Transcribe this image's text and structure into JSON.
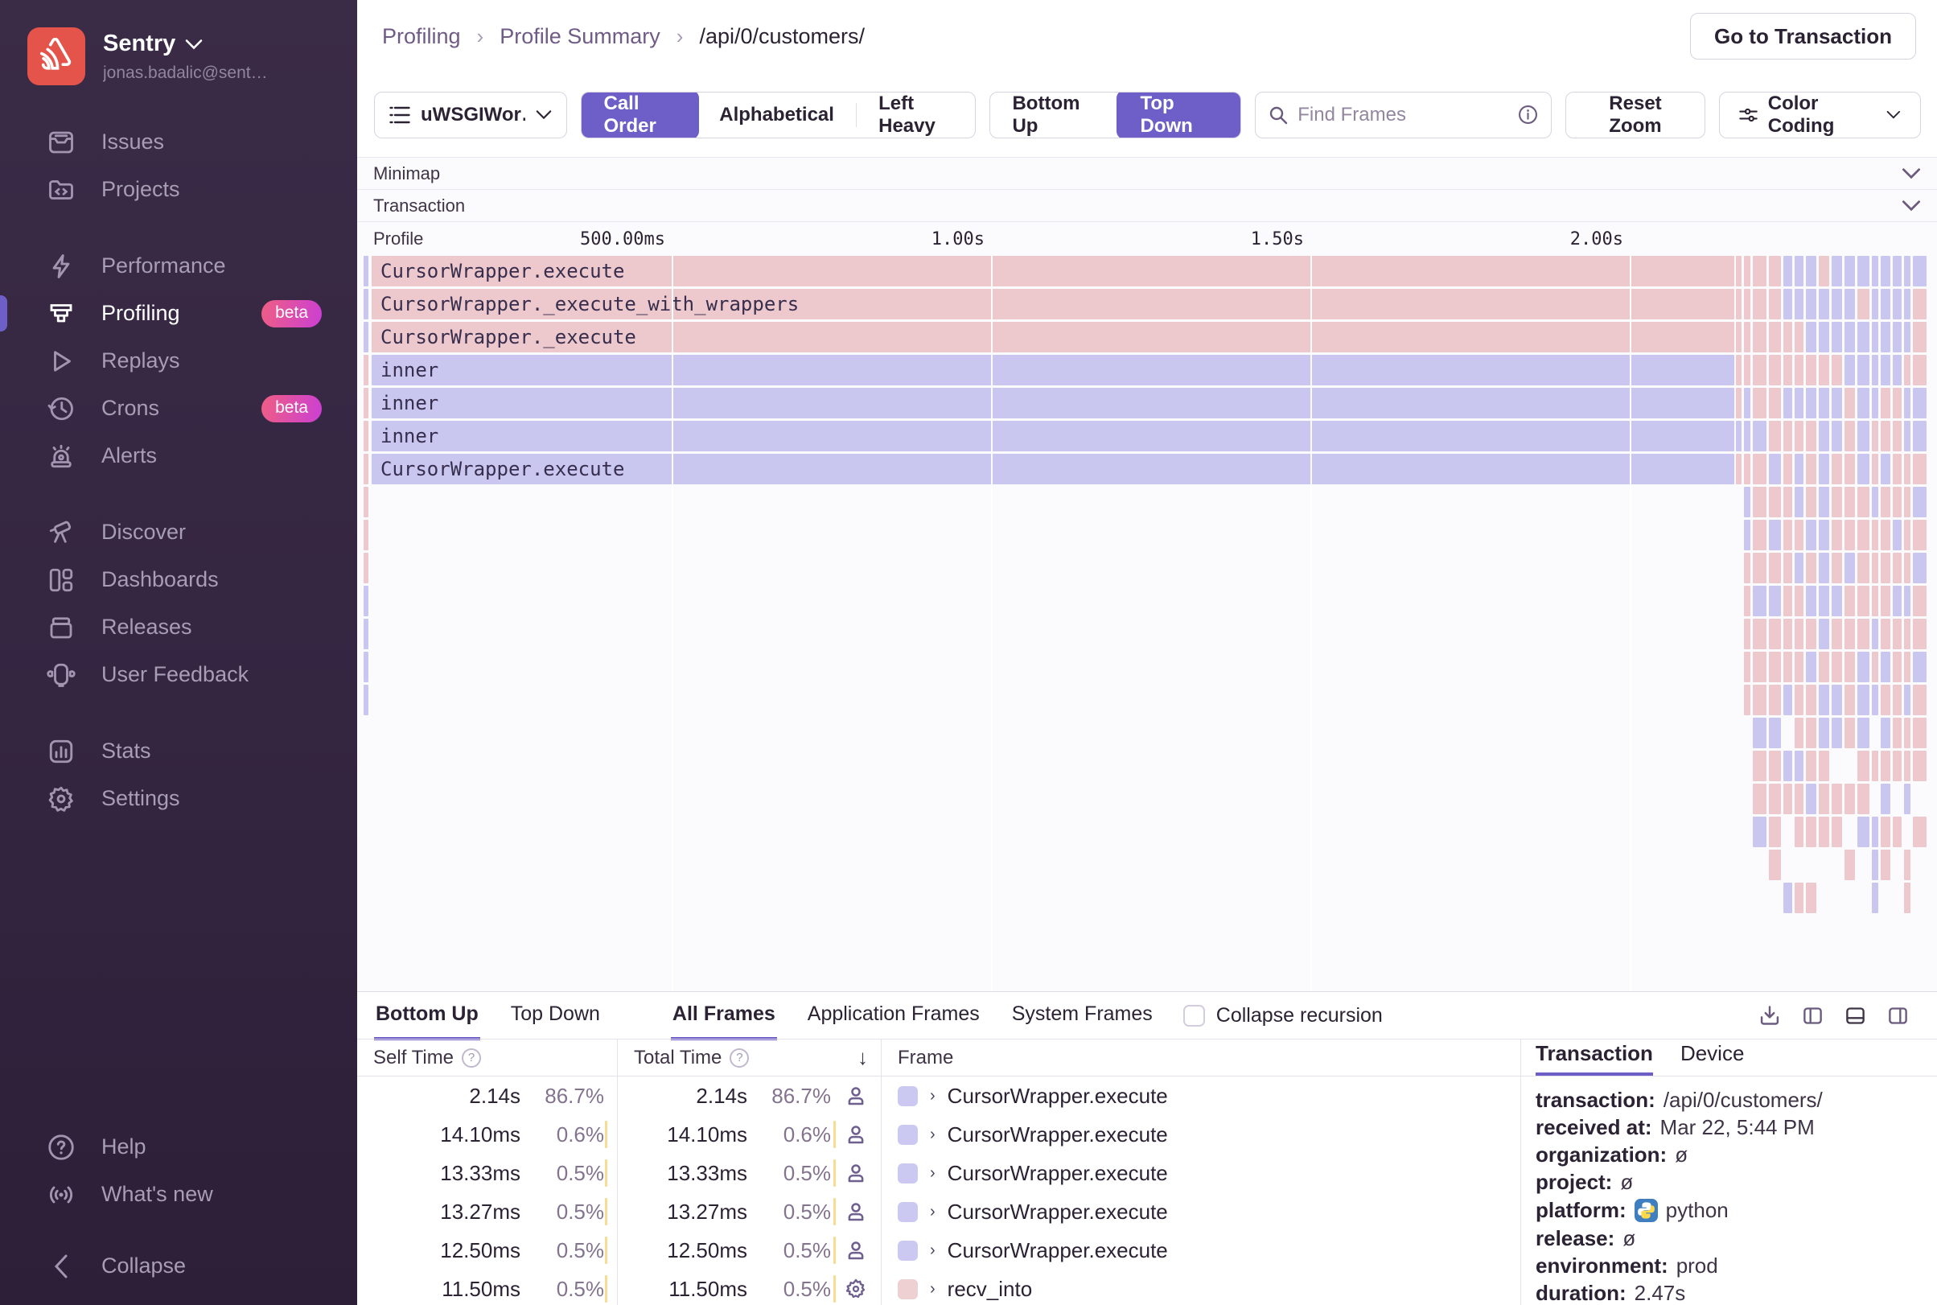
{
  "sidebar": {
    "org_name": "Sentry",
    "user_email": "jonas.badalic@sent…",
    "items": [
      {
        "label": "Issues",
        "icon": "issues",
        "gap": false
      },
      {
        "label": "Projects",
        "icon": "projects",
        "gap": false
      },
      {
        "label": "Performance",
        "icon": "performance",
        "gap": true
      },
      {
        "label": "Profiling",
        "icon": "profiling",
        "badge": "beta",
        "active": true,
        "gap": false
      },
      {
        "label": "Replays",
        "icon": "replays",
        "gap": false
      },
      {
        "label": "Crons",
        "icon": "crons",
        "badge": "beta",
        "gap": false
      },
      {
        "label": "Alerts",
        "icon": "alerts",
        "gap": false
      },
      {
        "label": "Discover",
        "icon": "discover",
        "gap": true
      },
      {
        "label": "Dashboards",
        "icon": "dashboards",
        "gap": false
      },
      {
        "label": "Releases",
        "icon": "releases",
        "gap": false
      },
      {
        "label": "User Feedback",
        "icon": "user-feedback",
        "gap": false
      },
      {
        "label": "Stats",
        "icon": "stats",
        "gap": true
      },
      {
        "label": "Settings",
        "icon": "settings",
        "gap": false
      }
    ],
    "footer_items": [
      {
        "label": "Help",
        "icon": "help"
      },
      {
        "label": "What's new",
        "icon": "whats-new"
      }
    ],
    "collapse_label": "Collapse"
  },
  "header": {
    "breadcrumbs": [
      "Profiling",
      "Profile Summary",
      "/api/0/customers/"
    ],
    "action_button": "Go to Transaction"
  },
  "toolbar": {
    "thread_select": "uWSGIWor…",
    "sort_options": [
      "Call Order",
      "Alphabetical",
      "Left Heavy"
    ],
    "sort_active": "Call Order",
    "direction_options": [
      "Bottom Up",
      "Top Down"
    ],
    "direction_active": "Top Down",
    "search_placeholder": "Find Frames",
    "reset_zoom_label": "Reset Zoom",
    "color_coding_label": "Color Coding"
  },
  "flamegraph": {
    "minimap_label": "Minimap",
    "transaction_label": "Transaction",
    "profile_label": "Profile",
    "time_ticks": [
      "500.00ms",
      "1.00s",
      "1.50s",
      "2.00s"
    ],
    "frames": [
      {
        "name": "CursorWrapper.execute",
        "color": "pink"
      },
      {
        "name": "CursorWrapper._execute_with_wrappers",
        "color": "pink"
      },
      {
        "name": "CursorWrapper._execute",
        "color": "pink"
      },
      {
        "name": "inner",
        "color": "lavender"
      },
      {
        "name": "inner",
        "color": "lavender"
      },
      {
        "name": "inner",
        "color": "lavender"
      },
      {
        "name": "CursorWrapper.execute",
        "color": "lavender"
      }
    ]
  },
  "bottom_panel": {
    "view_tabs": [
      "Bottom Up",
      "Top Down"
    ],
    "view_active": "Bottom Up",
    "filter_tabs": [
      "All Frames",
      "Application Frames",
      "System Frames"
    ],
    "filter_active": "All Frames",
    "collapse_recursion_label": "Collapse recursion",
    "columns": {
      "self": "Self Time",
      "total": "Total Time",
      "frame": "Frame"
    },
    "rows": [
      {
        "self_time": "2.14s",
        "self_pct": "86.7%",
        "total_time": "2.14s",
        "total_pct": "86.7%",
        "icon": "user",
        "frame": "CursorWrapper.execute",
        "swatch": "lavender",
        "highlight": true
      },
      {
        "self_time": "14.10ms",
        "self_pct": "0.6%",
        "total_time": "14.10ms",
        "total_pct": "0.6%",
        "icon": "user",
        "frame": "CursorWrapper.execute",
        "swatch": "lavender",
        "highlight": false
      },
      {
        "self_time": "13.33ms",
        "self_pct": "0.5%",
        "total_time": "13.33ms",
        "total_pct": "0.5%",
        "icon": "user",
        "frame": "CursorWrapper.execute",
        "swatch": "lavender",
        "highlight": false
      },
      {
        "self_time": "13.27ms",
        "self_pct": "0.5%",
        "total_time": "13.27ms",
        "total_pct": "0.5%",
        "icon": "user",
        "frame": "CursorWrapper.execute",
        "swatch": "lavender",
        "highlight": false
      },
      {
        "self_time": "12.50ms",
        "self_pct": "0.5%",
        "total_time": "12.50ms",
        "total_pct": "0.5%",
        "icon": "user",
        "frame": "CursorWrapper.execute",
        "swatch": "lavender",
        "highlight": false
      },
      {
        "self_time": "11.50ms",
        "self_pct": "0.5%",
        "total_time": "11.50ms",
        "total_pct": "0.5%",
        "icon": "gear",
        "frame": "recv_into",
        "swatch": "pink",
        "highlight": false
      }
    ]
  },
  "details_panel": {
    "tabs": [
      "Transaction",
      "Device"
    ],
    "active_tab": "Transaction",
    "fields": [
      {
        "label": "transaction:",
        "value": "/api/0/customers/",
        "icon": null
      },
      {
        "label": "received at:",
        "value": "Mar 22, 5:44 PM",
        "icon": null
      },
      {
        "label": "organization:",
        "value": "ø",
        "icon": null
      },
      {
        "label": "project:",
        "value": "ø",
        "icon": null
      },
      {
        "label": "platform:",
        "value": "python",
        "icon": "python"
      },
      {
        "label": "release:",
        "value": "ø",
        "icon": null
      },
      {
        "label": "environment:",
        "value": "prod",
        "icon": null
      },
      {
        "label": "duration:",
        "value": "2.47s",
        "icon": null
      }
    ]
  },
  "colors": {
    "accent_purple": "#6d5fc7",
    "flame_pink": "#edc9cd",
    "flame_lavender": "#c9c7f0",
    "highlight_yellow": "#fdf6e2",
    "highlight_border": "#efad33",
    "brand_red": "#e5544b",
    "badge_gradient_from": "#ef5e83",
    "badge_gradient_to": "#cb3fd4"
  }
}
